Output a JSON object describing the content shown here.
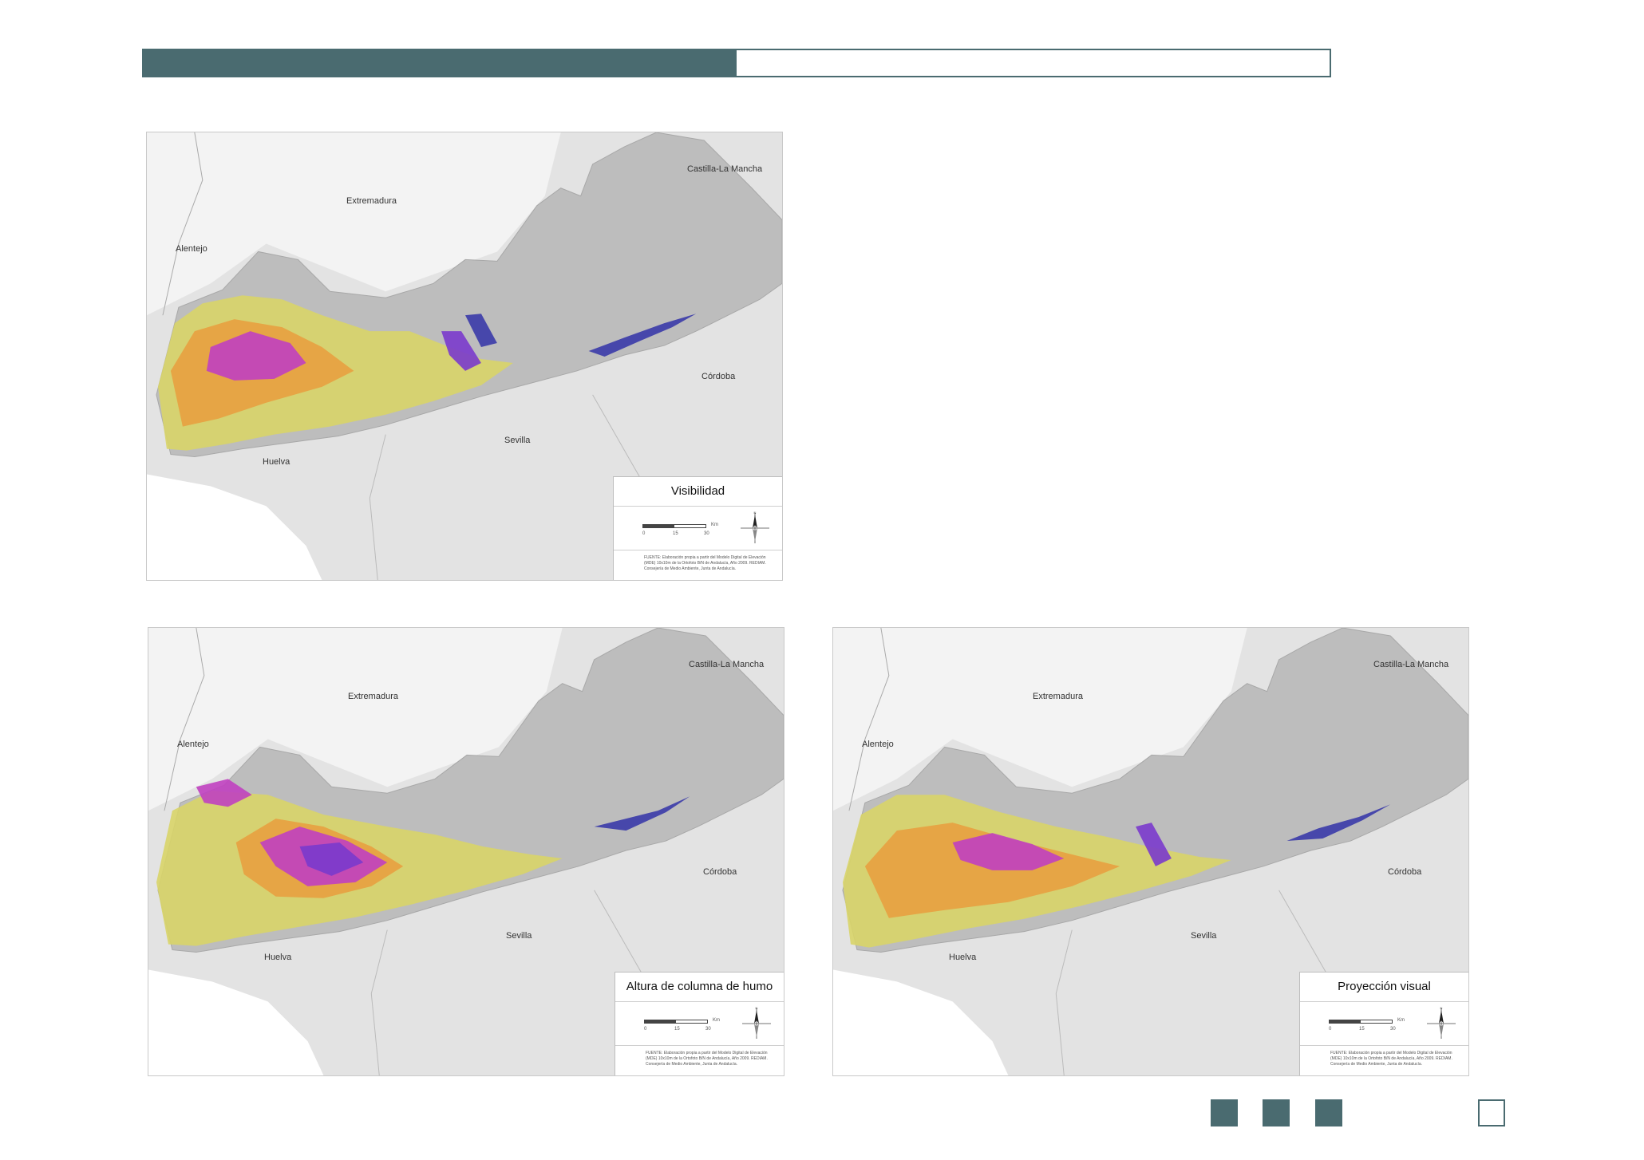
{
  "header": {
    "progress_fraction": 0.5
  },
  "maps": [
    {
      "title": "Visibilidad",
      "labels": {
        "castilla": "Castilla-La Mancha",
        "extremadura": "Extremadura",
        "alentejo": "Alentejo",
        "cordoba": "Córdoba",
        "sevilla": "Sevilla",
        "huelva": "Huelva"
      },
      "scale_ticks": [
        "0",
        "15",
        "30"
      ],
      "scale_unit": "Km",
      "source": "FUENTE: Elaboración propia a partir del Modelo Digital de Elevación (MDE) 10x10m de la Ortofoto B/N de Andalucía, Año 2009. REDIAM. Consejería de Medio Ambiente, Junta de Andalucía."
    },
    {
      "title": "Altura de columna de humo",
      "labels": {
        "castilla": "Castilla-La Mancha",
        "extremadura": "Extremadura",
        "alentejo": "Alentejo",
        "cordoba": "Córdoba",
        "sevilla": "Sevilla",
        "huelva": "Huelva"
      },
      "scale_ticks": [
        "0",
        "15",
        "30"
      ],
      "scale_unit": "Km",
      "source": "FUENTE: Elaboración propia a partir del Modelo Digital de Elevación (MDE) 10x10m de la Ortofoto B/N de Andalucía, Año 2009. REDIAM. Consejería de Medio Ambiente, Junta de Andalucía."
    },
    {
      "title": "Proyección visual",
      "labels": {
        "castilla": "Castilla-La Mancha",
        "extremadura": "Extremadura",
        "alentejo": "Alentejo",
        "cordoba": "Córdoba",
        "sevilla": "Sevilla",
        "huelva": "Huelva"
      },
      "scale_ticks": [
        "0",
        "15",
        "30"
      ],
      "scale_unit": "Km",
      "source": "FUENTE: Elaboración propia a partir del Modelo Digital de Elevación (MDE) 10x10m de la Ortofoto B/N de Andalucía, Año 2009. REDIAM. Consejería de Medio Ambiente, Junta de Andalucía."
    }
  ],
  "colors": {
    "accent": "#4a6b70",
    "terrain": "#bdbdbd",
    "land": "#e3e3e3",
    "yellow": "#d8d468",
    "orange": "#e8a040",
    "magenta": "#c040c0",
    "purple": "#7a3acc",
    "blue": "#3a3aa8"
  },
  "icons": {
    "north_arrow": "north-arrow-icon"
  }
}
